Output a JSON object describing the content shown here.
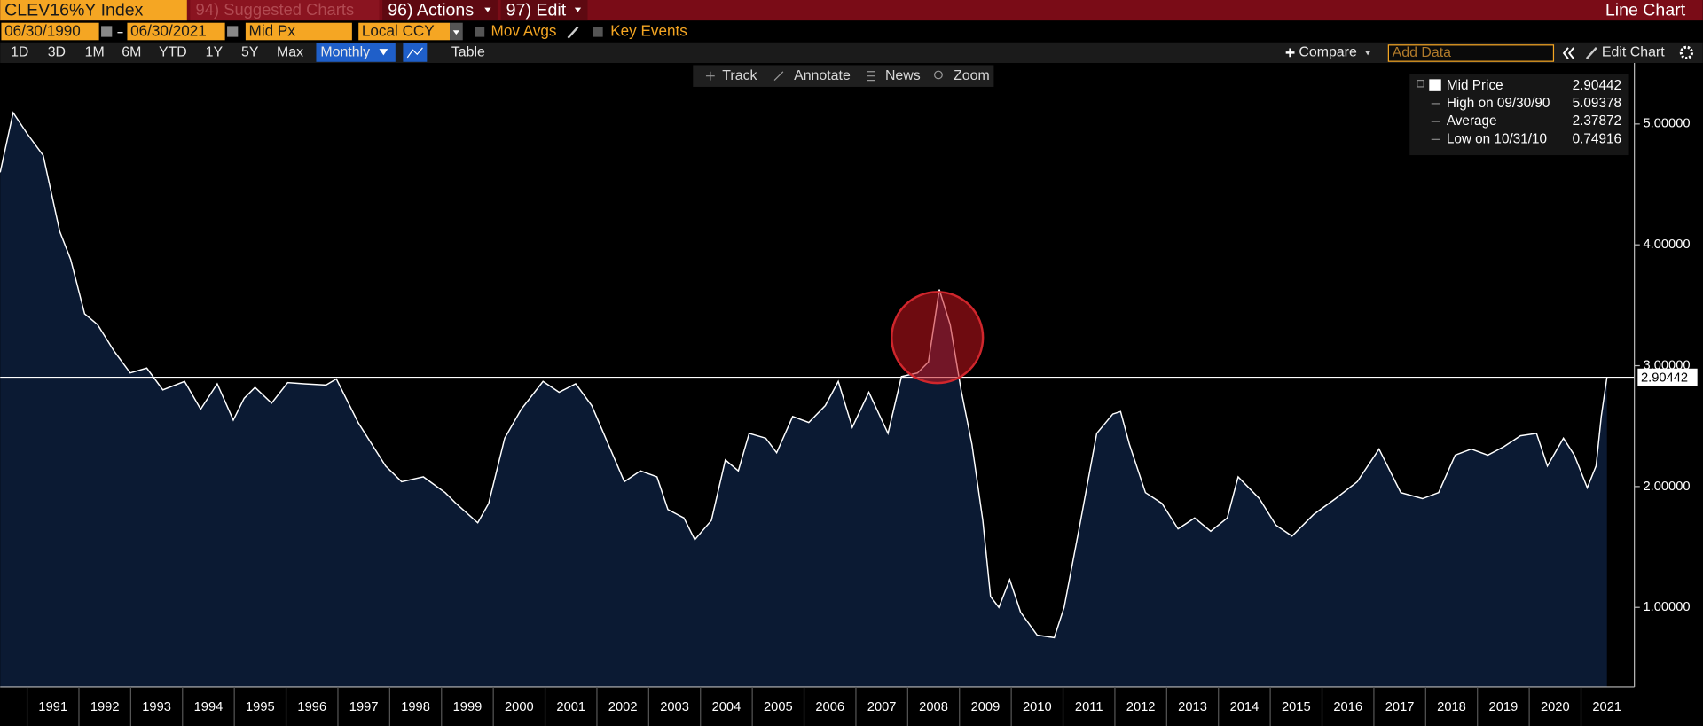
{
  "header": {
    "ticker": "CLEV16%Y Index",
    "menus": [
      "94) Suggested Charts",
      "96) Actions",
      "97) Edit"
    ],
    "view": "Line Chart"
  },
  "controls": {
    "start": "06/30/1990",
    "end": "06/30/2021",
    "field": "Mid Px",
    "currency": "Local CCY",
    "toggles": [
      "Mov Avgs",
      "Key Events"
    ],
    "periods": [
      "1D",
      "3D",
      "1M",
      "6M",
      "YTD",
      "1Y",
      "5Y",
      "Max"
    ],
    "frequency": "Monthly",
    "table": "Table",
    "compare": "Compare",
    "add_data": "Add Data",
    "edit_chart": "Edit Chart",
    "tools": [
      "Track",
      "Annotate",
      "News",
      "Zoom"
    ]
  },
  "chart_data": {
    "type": "line",
    "x": [
      1990.48,
      1990.73,
      1991.0,
      1991.31,
      1991.63,
      1991.84,
      1992.11,
      1992.36,
      1992.68,
      1992.99,
      1993.31,
      1993.62,
      1994.04,
      1994.35,
      1994.67,
      1994.98,
      1995.19,
      1995.4,
      1995.72,
      1996.03,
      1996.35,
      1996.77,
      1996.97,
      1997.39,
      1997.92,
      1998.23,
      1998.65,
      1999.07,
      1999.28,
      1999.7,
      1999.91,
      2000.22,
      2000.54,
      2000.96,
      2001.27,
      2001.59,
      2001.9,
      2002.22,
      2002.53,
      2002.84,
      2003.16,
      2003.37,
      2003.68,
      2003.89,
      2004.21,
      2004.48,
      2004.73,
      2004.94,
      2005.26,
      2005.47,
      2005.78,
      2006.09,
      2006.41,
      2006.66,
      2006.93,
      2007.25,
      2007.62,
      2007.88,
      2008.19,
      2008.4,
      2008.61,
      2008.82,
      2009.03,
      2009.24,
      2009.45,
      2009.6,
      2009.76,
      2009.97,
      2010.18,
      2010.5,
      2010.83,
      2011.02,
      2011.34,
      2011.65,
      2011.96,
      2012.11,
      2012.28,
      2012.59,
      2012.91,
      2013.22,
      2013.54,
      2013.85,
      2014.17,
      2014.38,
      2014.79,
      2015.11,
      2015.42,
      2015.84,
      2016.26,
      2016.68,
      2017.1,
      2017.52,
      2017.94,
      2018.25,
      2018.57,
      2018.88,
      2019.2,
      2019.51,
      2019.83,
      2020.14,
      2020.35,
      2020.66,
      2020.87,
      2021.12,
      2021.29,
      2021.39,
      2021.5
    ],
    "series": [
      {
        "name": "Mid Price",
        "color": "#ffffff",
        "fill": "#0b1a33",
        "values": [
          4.6,
          5.09378,
          4.92,
          4.74,
          4.11,
          3.88,
          3.43,
          3.34,
          3.12,
          2.94,
          2.98,
          2.8,
          2.87,
          2.64,
          2.85,
          2.55,
          2.73,
          2.82,
          2.69,
          2.86,
          2.85,
          2.84,
          2.89,
          2.53,
          2.17,
          2.04,
          2.08,
          1.95,
          1.86,
          1.7,
          1.86,
          2.4,
          2.64,
          2.87,
          2.78,
          2.85,
          2.67,
          2.35,
          2.04,
          2.13,
          2.08,
          1.81,
          1.74,
          1.56,
          1.72,
          2.22,
          2.13,
          2.44,
          2.4,
          2.28,
          2.58,
          2.53,
          2.67,
          2.87,
          2.49,
          2.78,
          2.44,
          2.91,
          2.94,
          3.03,
          3.63,
          3.34,
          2.8,
          2.35,
          1.72,
          1.09,
          1.0,
          1.23,
          0.96,
          0.77,
          0.74916,
          1.0,
          1.72,
          2.44,
          2.6,
          2.62,
          2.35,
          1.95,
          1.86,
          1.65,
          1.74,
          1.63,
          1.74,
          2.08,
          1.9,
          1.68,
          1.59,
          1.77,
          1.9,
          2.04,
          2.31,
          1.95,
          1.9,
          1.95,
          2.26,
          2.31,
          2.26,
          2.33,
          2.42,
          2.44,
          2.17,
          2.4,
          2.26,
          1.99,
          2.17,
          2.58,
          2.90442
        ]
      }
    ],
    "xlim": [
      1990.48,
      2022.03
    ],
    "xticks": [
      1991,
      1992,
      1993,
      1994,
      1995,
      1996,
      1997,
      1998,
      1999,
      2000,
      2001,
      2002,
      2003,
      2004,
      2005,
      2006,
      2007,
      2008,
      2009,
      2010,
      2011,
      2012,
      2013,
      2014,
      2015,
      2016,
      2017,
      2018,
      2019,
      2020,
      2021
    ],
    "ylim": [
      0.342,
      5.505
    ],
    "yticks": [
      {
        "value": 1,
        "label": "1.00000"
      },
      {
        "value": 2,
        "label": "2.00000"
      },
      {
        "value": 3,
        "label": "3.00000"
      },
      {
        "value": 4,
        "label": "4.00000"
      },
      {
        "value": 5,
        "label": "5.00000"
      }
    ],
    "legend": [
      {
        "label": "Mid Price",
        "value": 2.90442
      },
      {
        "label": "High on 09/30/90",
        "value": 5.09378
      },
      {
        "label": "Average",
        "value": 2.37872
      },
      {
        "label": "Low on 10/31/10",
        "value": 0.74916
      }
    ]
  }
}
